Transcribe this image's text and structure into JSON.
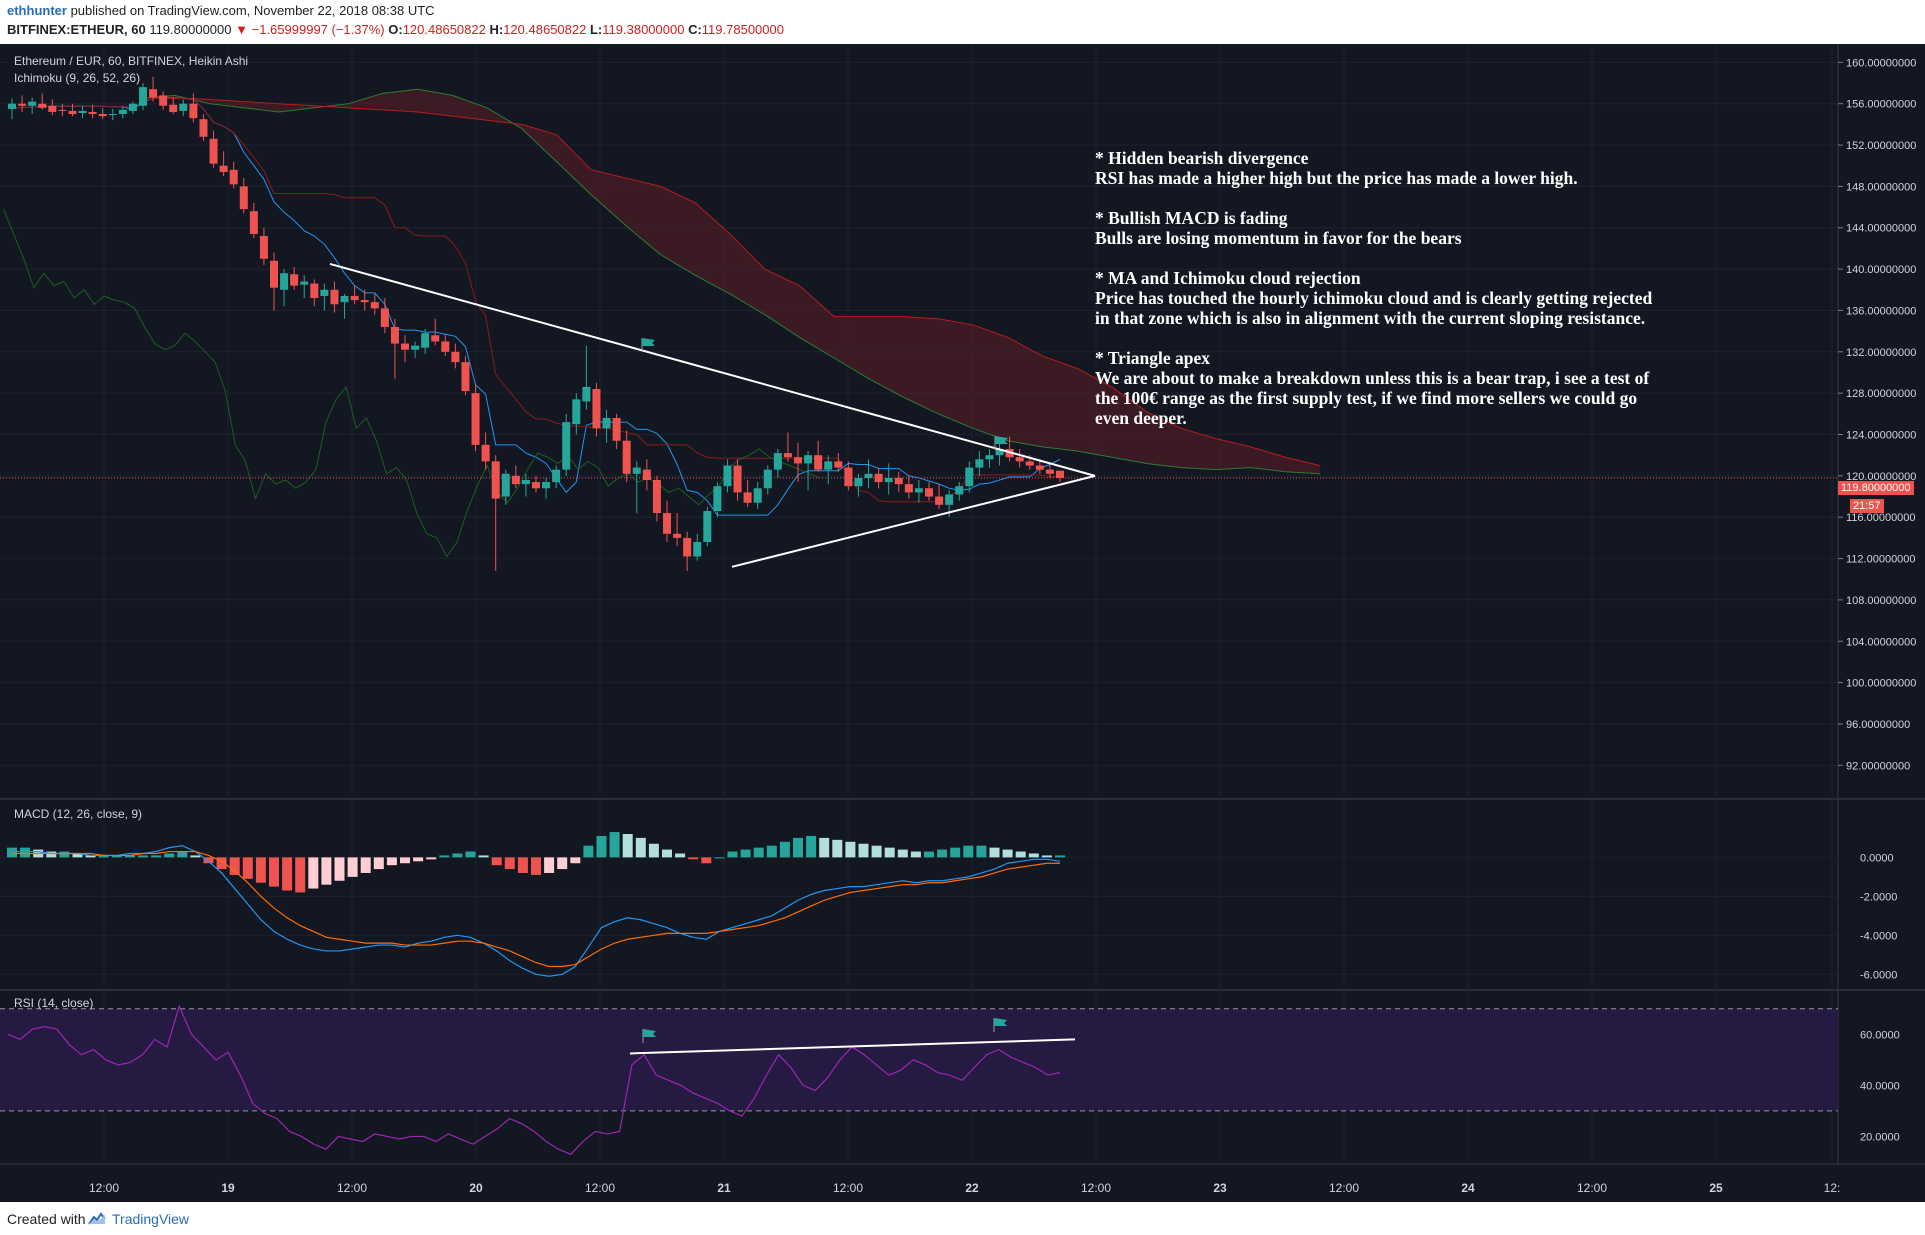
{
  "publish": {
    "user": "ethhunter",
    "text": "published on TradingView.com, November 22, 2018 08:38 UTC"
  },
  "ticker": {
    "symbol": "BITFINEX:ETHEUR, 60",
    "price": "119.80000000",
    "arrow": "▼",
    "change": "−1.65999997 (−1.37%)",
    "o_label": "O:",
    "o": "120.48650822",
    "h_label": "H:",
    "h": "120.48650822",
    "l_label": "L:",
    "l": "119.38000000",
    "c_label": "C:",
    "c": "119.78500000"
  },
  "legend": {
    "main": "Ethereum / EUR, 60, BITFINEX, Heikin Ashi",
    "ichimoku": "Ichimoku (9, 26, 52, 26)",
    "macd": "MACD (12, 26, close, 9)",
    "rsi": "RSI (14, close)"
  },
  "annotations": [
    {
      "heading": "* Hidden bearish divergence",
      "lines": [
        "RSI has made a higher high but the price has made a lower high."
      ]
    },
    {
      "heading": "* Bullish MACD is fading",
      "lines": [
        "Bulls are losing momentum in favor for the bears"
      ]
    },
    {
      "heading": "* MA and Ichimoku cloud rejection",
      "lines": [
        "Price has touched the hourly ichimoku cloud and is clearly getting rejected",
        "in that zone which is also in alignment with the current sloping resistance."
      ]
    },
    {
      "heading": "* Triangle apex",
      "lines": [
        "We are about to make a breakdown unless this is a bear trap, i see a test of",
        "the 100€ range as the first supply test, if we find more sellers we could go",
        "even deeper."
      ]
    }
  ],
  "price_tag": {
    "value": "119.80000000",
    "countdown": "21:57"
  },
  "footer": {
    "created": "Created with",
    "brand": "TradingView"
  },
  "colors": {
    "up": "#26a69a",
    "down": "#ef5350",
    "bg": "#131722",
    "cloud": "#5c1e26",
    "rsi": "#9c27b0",
    "macd": "#2196f3",
    "signal": "#ff6d00"
  },
  "chart_data": [
    {
      "type": "candlestick",
      "title": "Ethereum / EUR, 60, BITFINEX, Heikin Ashi",
      "y_ticks": [
        "160.00000000",
        "156.00000000",
        "152.00000000",
        "148.00000000",
        "144.00000000",
        "140.00000000",
        "136.00000000",
        "132.00000000",
        "128.00000000",
        "124.00000000",
        "120.00000000",
        "116.00000000",
        "112.00000000",
        "108.00000000",
        "104.00000000",
        "100.00000000",
        "96.00000000",
        "92.00000000"
      ],
      "y_values": [
        160,
        156,
        152,
        148,
        144,
        140,
        136,
        132,
        128,
        124,
        120,
        116,
        112,
        108,
        104,
        100,
        96,
        92
      ],
      "ylim": [
        90,
        161
      ],
      "x_ticks": [
        "12:00",
        "19",
        "12:00",
        "20",
        "12:00",
        "21",
        "12:00",
        "22",
        "12:00",
        "23",
        "12:00",
        "24",
        "12:00",
        "25",
        "12:"
      ],
      "candles_ohlc": [
        [
          155.5,
          156.5,
          154.5,
          156.0
        ],
        [
          156.0,
          156.8,
          155.2,
          155.8
        ],
        [
          155.8,
          156.6,
          155.0,
          156.2
        ],
        [
          156.0,
          157.0,
          155.4,
          155.6
        ],
        [
          155.8,
          156.4,
          154.9,
          155.2
        ],
        [
          155.4,
          156.0,
          154.8,
          155.3
        ],
        [
          155.3,
          156.0,
          154.8,
          155.0
        ],
        [
          155.1,
          155.8,
          154.6,
          155.3
        ],
        [
          155.2,
          155.9,
          154.6,
          155.0
        ],
        [
          155.0,
          155.6,
          154.5,
          154.8
        ],
        [
          154.9,
          155.5,
          154.4,
          155.0
        ],
        [
          155.0,
          155.8,
          154.6,
          155.4
        ],
        [
          155.3,
          156.2,
          155.0,
          156.0
        ],
        [
          155.8,
          158.0,
          155.4,
          157.6
        ],
        [
          157.4,
          158.6,
          156.2,
          156.6
        ],
        [
          156.8,
          157.2,
          155.4,
          155.8
        ],
        [
          155.9,
          156.6,
          155.0,
          155.2
        ],
        [
          155.3,
          156.4,
          154.8,
          156.0
        ],
        [
          156.0,
          157.0,
          154.2,
          154.6
        ],
        [
          154.5,
          155.0,
          152.4,
          152.8
        ],
        [
          152.6,
          153.4,
          149.8,
          150.2
        ],
        [
          150.0,
          151.4,
          149.0,
          149.4
        ],
        [
          149.6,
          150.4,
          147.8,
          148.2
        ],
        [
          148.0,
          148.8,
          145.4,
          145.8
        ],
        [
          145.6,
          146.4,
          143.0,
          143.4
        ],
        [
          143.2,
          144.0,
          140.4,
          141.0
        ],
        [
          140.8,
          141.6,
          136.0,
          138.2
        ],
        [
          138.0,
          140.0,
          136.4,
          139.6
        ],
        [
          139.5,
          140.2,
          138.0,
          138.4
        ],
        [
          138.5,
          139.4,
          137.2,
          138.8
        ],
        [
          138.6,
          139.0,
          136.4,
          137.2
        ],
        [
          137.4,
          138.6,
          136.0,
          138.0
        ],
        [
          138.0,
          138.8,
          135.8,
          136.6
        ],
        [
          136.8,
          137.6,
          135.2,
          137.4
        ],
        [
          137.4,
          138.4,
          136.6,
          137.0
        ],
        [
          137.0,
          138.0,
          136.0,
          136.8
        ],
        [
          136.8,
          137.6,
          135.6,
          136.2
        ],
        [
          136.2,
          137.2,
          133.8,
          134.4
        ],
        [
          134.4,
          135.2,
          129.4,
          132.8
        ],
        [
          132.8,
          133.6,
          131.0,
          132.2
        ],
        [
          132.2,
          133.0,
          131.4,
          132.6
        ],
        [
          132.4,
          134.2,
          131.8,
          133.8
        ],
        [
          133.6,
          135.2,
          132.6,
          133.0
        ],
        [
          133.0,
          133.6,
          131.6,
          132.0
        ],
        [
          132.0,
          132.8,
          130.4,
          131.0
        ],
        [
          131.0,
          131.6,
          127.8,
          128.2
        ],
        [
          128.0,
          128.8,
          122.4,
          123.0
        ],
        [
          123.0,
          124.2,
          120.6,
          121.4
        ],
        [
          121.4,
          122.0,
          110.8,
          117.8
        ],
        [
          118.0,
          120.6,
          117.2,
          120.2
        ],
        [
          120.0,
          121.0,
          118.8,
          119.2
        ],
        [
          119.2,
          120.2,
          118.0,
          119.6
        ],
        [
          119.4,
          120.0,
          118.4,
          118.8
        ],
        [
          118.8,
          119.8,
          117.8,
          119.4
        ],
        [
          119.4,
          121.0,
          118.8,
          120.6
        ],
        [
          120.6,
          126.0,
          120.0,
          125.2
        ],
        [
          125.0,
          128.0,
          124.0,
          127.4
        ],
        [
          127.2,
          132.6,
          126.4,
          128.6
        ],
        [
          128.4,
          129.0,
          123.8,
          124.6
        ],
        [
          124.6,
          126.4,
          123.2,
          125.6
        ],
        [
          125.6,
          126.0,
          122.6,
          123.4
        ],
        [
          123.4,
          124.4,
          119.4,
          120.2
        ],
        [
          120.2,
          121.4,
          116.4,
          120.8
        ],
        [
          120.6,
          121.6,
          118.6,
          119.6
        ],
        [
          119.6,
          120.0,
          115.6,
          116.4
        ],
        [
          116.4,
          117.6,
          113.6,
          114.4
        ],
        [
          114.4,
          116.4,
          113.2,
          114.0
        ],
        [
          114.0,
          114.6,
          110.8,
          112.2
        ],
        [
          112.2,
          114.4,
          111.8,
          113.6
        ],
        [
          113.6,
          117.0,
          113.2,
          116.6
        ],
        [
          116.6,
          119.4,
          116.0,
          119.0
        ],
        [
          119.0,
          121.6,
          118.4,
          121.0
        ],
        [
          121.0,
          121.6,
          117.6,
          118.4
        ],
        [
          118.4,
          119.6,
          117.0,
          117.4
        ],
        [
          117.4,
          119.4,
          116.8,
          118.8
        ],
        [
          118.8,
          121.0,
          118.2,
          120.6
        ],
        [
          120.6,
          122.6,
          119.8,
          122.2
        ],
        [
          122.2,
          124.2,
          121.4,
          121.8
        ],
        [
          121.8,
          123.2,
          119.4,
          121.2
        ],
        [
          121.2,
          122.4,
          118.6,
          122.0
        ],
        [
          122.0,
          123.4,
          120.4,
          120.6
        ],
        [
          120.6,
          122.0,
          119.2,
          121.4
        ],
        [
          121.4,
          122.2,
          120.4,
          120.8
        ],
        [
          120.8,
          121.4,
          118.6,
          119.0
        ],
        [
          119.0,
          120.2,
          118.0,
          119.8
        ],
        [
          119.8,
          121.6,
          118.8,
          120.2
        ],
        [
          120.2,
          120.8,
          118.8,
          119.4
        ],
        [
          119.4,
          121.2,
          118.2,
          119.8
        ],
        [
          119.8,
          120.4,
          118.4,
          119.2
        ],
        [
          119.2,
          120.0,
          117.8,
          118.4
        ],
        [
          118.4,
          119.6,
          117.4,
          118.8
        ],
        [
          118.8,
          119.4,
          117.6,
          118.0
        ],
        [
          118.0,
          119.2,
          116.8,
          117.2
        ],
        [
          117.2,
          118.6,
          116.0,
          118.2
        ],
        [
          118.2,
          119.4,
          117.6,
          119.0
        ],
        [
          119.0,
          121.4,
          118.4,
          120.8
        ],
        [
          120.8,
          122.4,
          120.0,
          121.6
        ],
        [
          121.6,
          122.6,
          120.8,
          122.0
        ],
        [
          122.0,
          123.2,
          121.0,
          122.6
        ],
        [
          122.6,
          123.8,
          121.4,
          121.8
        ],
        [
          121.8,
          122.6,
          120.8,
          121.4
        ],
        [
          121.4,
          122.0,
          120.6,
          121.0
        ],
        [
          121.0,
          121.6,
          120.2,
          120.6
        ],
        [
          120.6,
          121.2,
          119.8,
          120.2
        ],
        [
          120.5,
          120.5,
          119.4,
          119.8
        ]
      ],
      "trendlines": [
        {
          "name": "resistance",
          "from": [
            "18 22:00",
            140.5
          ],
          "to": [
            "22 12:00",
            120.0
          ]
        },
        {
          "name": "support",
          "from": [
            "21 00:00",
            111.2
          ],
          "to": [
            "22 12:00",
            120.0
          ]
        }
      ],
      "current_price": 119.8
    },
    {
      "type": "line",
      "title": "MACD (12, 26, close, 9)",
      "y_ticks": [
        "0.0000",
        "-2.0000",
        "-4.0000",
        "-6.0000"
      ],
      "y_values": [
        0,
        -2,
        -4,
        -6
      ],
      "ylim": [
        -6.8,
        1.6
      ],
      "series": [
        {
          "values_macd": [
            0.3,
            0.3,
            0.3,
            0.2,
            0.2,
            0.2,
            0.1,
            0.1,
            0.1,
            0.2,
            0.2,
            0.3,
            0.5,
            0.6,
            0.3,
            -0.2,
            -0.8,
            -1.6,
            -2.4,
            -3.2,
            -3.8,
            -4.2,
            -4.5,
            -4.7,
            -4.8,
            -4.8,
            -4.7,
            -4.6,
            -4.5,
            -4.5,
            -4.6,
            -4.4,
            -4.3,
            -4.1,
            -4.0,
            -4.1,
            -4.4,
            -4.8,
            -5.3,
            -5.7,
            -6.0,
            -6.1,
            -6.0,
            -5.6,
            -4.6,
            -3.6,
            -3.3,
            -3.1,
            -3.2,
            -3.4,
            -3.6,
            -3.9,
            -4.1,
            -4.2,
            -3.8,
            -3.6,
            -3.4,
            -3.2,
            -3.0,
            -2.6,
            -2.2,
            -1.9,
            -1.7,
            -1.6,
            -1.5,
            -1.5,
            -1.4,
            -1.3,
            -1.2,
            -1.3,
            -1.2,
            -1.2,
            -1.1,
            -1.0,
            -0.8,
            -0.6,
            -0.3,
            -0.2,
            -0.1,
            -0.1,
            -0.2
          ]
        },
        {
          "values_signal": [
            0.2,
            0.2,
            0.2,
            0.2,
            0.2,
            0.2,
            0.2,
            0.1,
            0.1,
            0.1,
            0.2,
            0.2,
            0.3,
            0.3,
            0.3,
            0.1,
            -0.2,
            -0.7,
            -1.3,
            -2.0,
            -2.6,
            -3.1,
            -3.5,
            -3.8,
            -4.1,
            -4.2,
            -4.3,
            -4.4,
            -4.4,
            -4.4,
            -4.5,
            -4.5,
            -4.5,
            -4.4,
            -4.3,
            -4.3,
            -4.4,
            -4.6,
            -4.8,
            -5.1,
            -5.4,
            -5.6,
            -5.6,
            -5.5,
            -5.1,
            -4.7,
            -4.4,
            -4.2,
            -4.1,
            -4.0,
            -3.9,
            -3.9,
            -3.9,
            -3.9,
            -3.8,
            -3.7,
            -3.6,
            -3.5,
            -3.3,
            -3.1,
            -2.8,
            -2.5,
            -2.2,
            -2.0,
            -1.8,
            -1.7,
            -1.6,
            -1.5,
            -1.4,
            -1.4,
            -1.3,
            -1.3,
            -1.2,
            -1.1,
            -1.0,
            -0.8,
            -0.6,
            -0.5,
            -0.4,
            -0.3,
            -0.3
          ]
        },
        {
          "histogram": [
            0.5,
            0.5,
            0.4,
            0.3,
            0.3,
            0.2,
            0.1,
            0.1,
            0.1,
            0.1,
            0.1,
            0.1,
            0.2,
            0.3,
            0.1,
            -0.3,
            -0.6,
            -0.9,
            -1.1,
            -1.3,
            -1.5,
            -1.7,
            -1.8,
            -1.6,
            -1.4,
            -1.2,
            -1.0,
            -0.8,
            -0.6,
            -0.4,
            -0.3,
            -0.2,
            -0.1,
            0.1,
            0.2,
            0.3,
            0.1,
            -0.4,
            -0.6,
            -0.8,
            -0.9,
            -0.8,
            -0.6,
            -0.3,
            0.6,
            1.1,
            1.3,
            1.2,
            1.0,
            0.7,
            0.4,
            0.2,
            -0.1,
            -0.3,
            0.0,
            0.3,
            0.4,
            0.5,
            0.6,
            0.8,
            1.0,
            1.1,
            1.0,
            0.9,
            0.8,
            0.7,
            0.6,
            0.5,
            0.4,
            0.3,
            0.3,
            0.4,
            0.5,
            0.6,
            0.6,
            0.5,
            0.4,
            0.3,
            0.2,
            0.1,
            0.1
          ]
        }
      ]
    },
    {
      "type": "line",
      "title": "RSI (14, close)",
      "y_ticks": [
        "60.0000",
        "40.0000",
        "20.0000"
      ],
      "y_values": [
        60,
        40,
        20
      ],
      "ylim": [
        10,
        75
      ],
      "bands": [
        70,
        30
      ],
      "series": [
        {
          "values": [
            60,
            58,
            62,
            63,
            62,
            56,
            52,
            54,
            50,
            48,
            49,
            52,
            58,
            55,
            71,
            60,
            55,
            50,
            53,
            44,
            33,
            29,
            27,
            22,
            20,
            17,
            15,
            20,
            19,
            18,
            21,
            20,
            19,
            20,
            20,
            18,
            21,
            19,
            17,
            20,
            23,
            27,
            25,
            22,
            18,
            15,
            13,
            18,
            22,
            21,
            22,
            48,
            52,
            44,
            42,
            40,
            37,
            35,
            33,
            30,
            28,
            35,
            44,
            52,
            47,
            40,
            38,
            43,
            50,
            55,
            52,
            48,
            44,
            46,
            50,
            48,
            45,
            44,
            42,
            47,
            52,
            54,
            51,
            49,
            47,
            44,
            45
          ]
        }
      ],
      "trendlines": [
        {
          "name": "rsi-higher-high",
          "from": [
            "20 14:00",
            52.5
          ],
          "to": [
            "22 16:00",
            58.0
          ]
        }
      ]
    }
  ]
}
